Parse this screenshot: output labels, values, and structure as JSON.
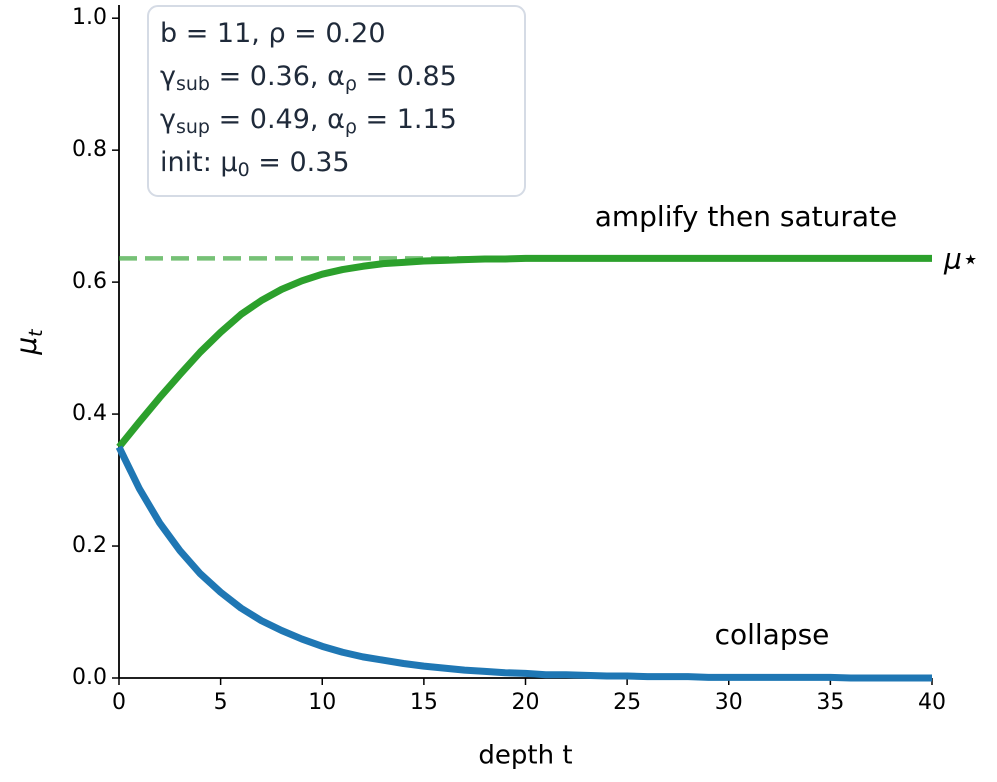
{
  "chart_data": {
    "type": "line",
    "x": [
      0,
      1,
      2,
      3,
      4,
      5,
      6,
      7,
      8,
      9,
      10,
      11,
      12,
      13,
      14,
      15,
      16,
      17,
      18,
      19,
      20,
      21,
      22,
      23,
      24,
      25,
      26,
      27,
      28,
      29,
      30,
      31,
      32,
      33,
      34,
      35,
      36,
      37,
      38,
      39,
      40
    ],
    "series": [
      {
        "name": "amplify then saturate",
        "color": "#2ca02c",
        "values": [
          0.35,
          0.388,
          0.425,
          0.46,
          0.494,
          0.524,
          0.551,
          0.572,
          0.589,
          0.602,
          0.612,
          0.619,
          0.624,
          0.628,
          0.63,
          0.632,
          0.633,
          0.634,
          0.635,
          0.635,
          0.636,
          0.636,
          0.636,
          0.636,
          0.636,
          0.636,
          0.636,
          0.636,
          0.636,
          0.636,
          0.636,
          0.636,
          0.636,
          0.636,
          0.636,
          0.636,
          0.636,
          0.636,
          0.636,
          0.636,
          0.636
        ]
      },
      {
        "name": "collapse",
        "color": "#1f77b4",
        "values": [
          0.35,
          0.287,
          0.235,
          0.193,
          0.158,
          0.13,
          0.106,
          0.087,
          0.072,
          0.059,
          0.048,
          0.039,
          0.032,
          0.027,
          0.022,
          0.018,
          0.015,
          0.012,
          0.01,
          0.008,
          0.007,
          0.005,
          0.005,
          0.004,
          0.003,
          0.003,
          0.002,
          0.002,
          0.002,
          0.001,
          0.001,
          0.001,
          0.001,
          0.001,
          0.001,
          0.001,
          0,
          0,
          0,
          0,
          0
        ]
      }
    ],
    "reference_line": {
      "value": 0.636,
      "label": "μ⋆",
      "color": "#2ca02c"
    },
    "xlabel": "depth t",
    "ylabel": [
      "μ",
      "t"
    ],
    "xlim": [
      0,
      40
    ],
    "xticks": [
      0,
      5,
      10,
      15,
      20,
      25,
      30,
      35,
      40
    ],
    "ylim": [
      0,
      1.02
    ],
    "yticks": [
      {
        "value": 0,
        "label": "0.0"
      },
      {
        "value": 0.2,
        "label": "0.2"
      },
      {
        "value": 0.4,
        "label": "0.4"
      },
      {
        "value": 0.6,
        "label": "0.6"
      },
      {
        "value": 0.8,
        "label": "0.8"
      },
      {
        "value": 1,
        "label": "1.0"
      }
    ],
    "info_box": [
      [
        "b = 11, ρ = 0.20"
      ],
      [
        "γ",
        "sub",
        " = 0.36, α",
        "ρ",
        " = 0.85"
      ],
      [
        "γ",
        "sup",
        " = 0.49, α",
        "ρ",
        " = 1.15"
      ],
      [
        "init: μ",
        "0",
        " = 0.35"
      ]
    ]
  }
}
